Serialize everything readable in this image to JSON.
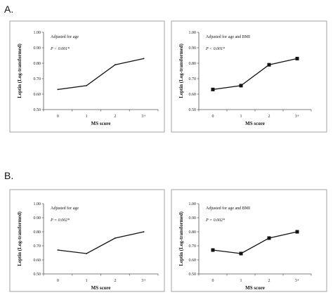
{
  "sections": [
    {
      "label": "A."
    },
    {
      "label": "B."
    }
  ],
  "chart_data": [
    {
      "type": "line",
      "section": "A.",
      "title": "",
      "annotations": [
        "Adjusted for age",
        "P < 0.001*"
      ],
      "xlabel": "MS score",
      "ylabel": "Leptin (Log-transformed)",
      "categories": [
        "0",
        "1",
        "2",
        "3+"
      ],
      "ylim": [
        0.5,
        1.0
      ],
      "yticks": [
        "0.50",
        "0.60",
        "0.70",
        "0.80",
        "0.90",
        "1.00"
      ],
      "marker": "none",
      "series": [
        {
          "values": [
            0.63,
            0.655,
            0.79,
            0.83
          ]
        }
      ],
      "grid": false
    },
    {
      "type": "line",
      "section": "A.",
      "title": "",
      "annotations": [
        "Adjusted for age and BMI",
        "P < 0.001*"
      ],
      "xlabel": "MS score",
      "ylabel": "Leptin (Log-transformed)",
      "categories": [
        "0",
        "1",
        "2",
        "3+"
      ],
      "ylim": [
        0.5,
        1.0
      ],
      "yticks": [
        "0.50",
        "0.60",
        "0.70",
        "0.80",
        "0.90",
        "1.00"
      ],
      "marker": "square",
      "series": [
        {
          "values": [
            0.63,
            0.655,
            0.79,
            0.83
          ]
        }
      ],
      "grid": false
    },
    {
      "type": "line",
      "section": "B.",
      "title": "",
      "annotations": [
        "Adjusted for age",
        "P = 0.002*"
      ],
      "xlabel": "MS score",
      "ylabel": "Leptin (Log-transformed)",
      "categories": [
        "0",
        "1",
        "2",
        "3+"
      ],
      "ylim": [
        0.5,
        1.0
      ],
      "yticks": [
        "0.50",
        "0.60",
        "0.70",
        "0.80",
        "0.90",
        "1.00"
      ],
      "marker": "none",
      "series": [
        {
          "values": [
            0.67,
            0.645,
            0.755,
            0.8
          ]
        }
      ],
      "grid": false
    },
    {
      "type": "line",
      "section": "B.",
      "title": "",
      "annotations": [
        "Adjusted for age and BMI",
        "P = 0.002*"
      ],
      "xlabel": "MS score",
      "ylabel": "Leptin (Log-transformed)",
      "categories": [
        "0",
        "1",
        "2",
        "3+"
      ],
      "ylim": [
        0.5,
        1.0
      ],
      "yticks": [
        "0.50",
        "0.60",
        "0.70",
        "0.80",
        "0.90",
        "1.00"
      ],
      "marker": "square",
      "series": [
        {
          "values": [
            0.67,
            0.645,
            0.755,
            0.8
          ]
        }
      ],
      "grid": false
    }
  ]
}
